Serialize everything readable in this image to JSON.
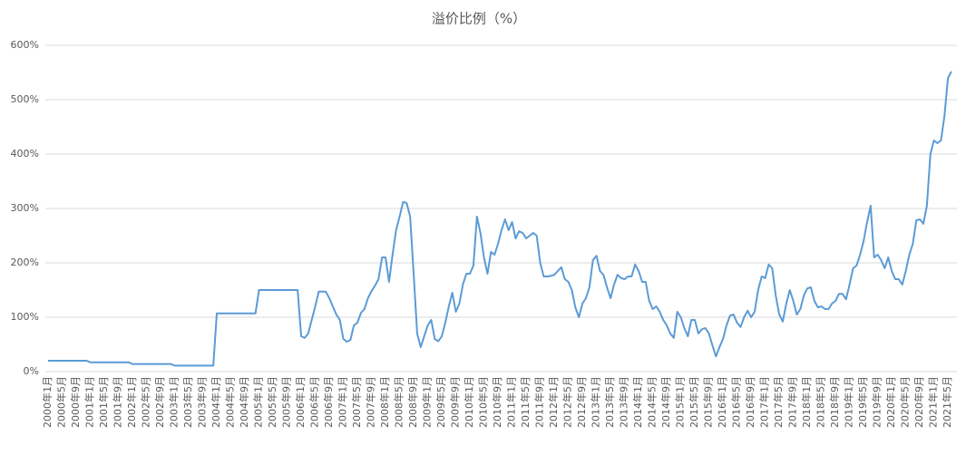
{
  "chart_data": {
    "type": "line",
    "title": "溢价比例（%）",
    "categories": [
      "2000年1月",
      null,
      null,
      null,
      "2000年5月",
      null,
      null,
      null,
      "2000年9月",
      null,
      null,
      null,
      "2001年1月",
      null,
      null,
      null,
      "2001年5月",
      null,
      null,
      null,
      "2001年9月",
      null,
      null,
      null,
      "2002年1月",
      null,
      null,
      null,
      "2002年5月",
      null,
      null,
      null,
      "2002年9月",
      null,
      null,
      null,
      "2003年1月",
      null,
      null,
      null,
      "2003年5月",
      null,
      null,
      null,
      "2003年9月",
      null,
      null,
      null,
      "2004年1月",
      null,
      null,
      null,
      "2004年5月",
      null,
      null,
      null,
      "2004年9月",
      null,
      null,
      null,
      "2005年1月",
      null,
      null,
      null,
      "2005年5月",
      null,
      null,
      null,
      "2005年9月",
      null,
      null,
      null,
      "2006年1月",
      null,
      null,
      null,
      "2006年5月",
      null,
      null,
      null,
      "2006年9月",
      null,
      null,
      null,
      "2007年1月",
      null,
      null,
      null,
      "2007年5月",
      null,
      null,
      null,
      "2007年9月",
      null,
      null,
      null,
      "2008年1月",
      null,
      null,
      null,
      "2008年5月",
      null,
      null,
      null,
      "2008年9月",
      null,
      null,
      null,
      "2009年1月",
      null,
      null,
      null,
      "2009年5月",
      null,
      null,
      null,
      "2009年9月",
      null,
      null,
      null,
      "2010年1月",
      null,
      null,
      null,
      "2010年5月",
      null,
      null,
      null,
      "2010年9月",
      null,
      null,
      null,
      "2011年1月",
      null,
      null,
      null,
      "2011年5月",
      null,
      null,
      null,
      "2011年9月",
      null,
      null,
      null,
      "2012年1月",
      null,
      null,
      null,
      "2012年5月",
      null,
      null,
      null,
      "2012年9月",
      null,
      null,
      null,
      "2013年1月",
      null,
      null,
      null,
      "2013年5月",
      null,
      null,
      null,
      "2013年9月",
      null,
      null,
      null,
      "2014年1月",
      null,
      null,
      null,
      "2014年5月",
      null,
      null,
      null,
      "2014年9月",
      null,
      null,
      null,
      "2015年1月",
      null,
      null,
      null,
      "2015年5月",
      null,
      null,
      null,
      "2015年9月",
      null,
      null,
      null,
      "2016年1月",
      null,
      null,
      null,
      "2016年5月",
      null,
      null,
      null,
      "2016年9月",
      null,
      null,
      null,
      "2017年1月",
      null,
      null,
      null,
      "2017年5月",
      null,
      null,
      null,
      "2017年9月",
      null,
      null,
      null,
      "2018年1月",
      null,
      null,
      null,
      "2018年5月",
      null,
      null,
      null,
      "2018年9月",
      null,
      null,
      null,
      "2019年1月",
      null,
      null,
      null,
      "2019年5月",
      null,
      null,
      null,
      "2019年9月",
      null,
      null,
      null,
      "2020年1月",
      null,
      null,
      null,
      "2020年5月",
      null,
      null,
      null,
      "2020年9月",
      null,
      null,
      null,
      "2021年1月",
      null,
      null,
      null,
      "2021年5月",
      null
    ],
    "values": [
      20,
      20,
      20,
      20,
      20,
      20,
      20,
      20,
      20,
      20,
      20,
      20,
      17,
      17,
      17,
      17,
      17,
      17,
      17,
      17,
      17,
      17,
      17,
      17,
      14,
      14,
      14,
      14,
      14,
      14,
      14,
      14,
      14,
      14,
      14,
      14,
      11,
      11,
      11,
      11,
      11,
      11,
      11,
      11,
      11,
      11,
      11,
      11,
      107,
      107,
      107,
      107,
      107,
      107,
      107,
      107,
      107,
      107,
      107,
      107,
      150,
      150,
      150,
      150,
      150,
      150,
      150,
      150,
      150,
      150,
      150,
      150,
      65,
      62,
      70,
      95,
      120,
      147,
      147,
      147,
      135,
      120,
      105,
      95,
      60,
      55,
      58,
      85,
      90,
      108,
      115,
      135,
      148,
      158,
      170,
      210,
      210,
      165,
      215,
      260,
      285,
      312,
      310,
      285,
      180,
      70,
      45,
      65,
      85,
      95,
      60,
      56,
      65,
      90,
      120,
      145,
      110,
      125,
      160,
      180,
      180,
      195,
      285,
      255,
      210,
      180,
      220,
      215,
      235,
      260,
      280,
      260,
      275,
      245,
      258,
      255,
      245,
      250,
      255,
      250,
      200,
      175,
      175,
      176,
      178,
      185,
      192,
      170,
      165,
      150,
      118,
      100,
      125,
      135,
      155,
      205,
      213,
      185,
      178,
      155,
      135,
      160,
      178,
      172,
      170,
      175,
      175,
      197,
      185,
      165,
      165,
      130,
      115,
      120,
      110,
      95,
      85,
      70,
      62,
      110,
      100,
      80,
      65,
      95,
      95,
      70,
      78,
      80,
      70,
      48,
      28,
      45,
      60,
      85,
      103,
      105,
      90,
      82,
      100,
      112,
      100,
      110,
      150,
      175,
      172,
      197,
      190,
      140,
      105,
      92,
      125,
      150,
      130,
      105,
      115,
      140,
      153,
      155,
      130,
      118,
      120,
      115,
      115,
      125,
      130,
      143,
      143,
      133,
      160,
      190,
      195,
      215,
      240,
      275,
      305,
      210,
      215,
      205,
      190,
      210,
      185,
      170,
      170,
      160,
      185,
      215,
      235,
      278,
      280,
      272,
      305,
      400,
      425,
      420,
      425,
      470,
      540,
      552
    ],
    "color": "#5b9bd5",
    "ylim": [
      0,
      600
    ],
    "yticks": [
      {
        "value": 0,
        "label": "0%"
      },
      {
        "value": 100,
        "label": "100%"
      },
      {
        "value": 200,
        "label": "200%"
      },
      {
        "value": 300,
        "label": "300%"
      },
      {
        "value": 400,
        "label": "400%"
      },
      {
        "value": 500,
        "label": "500%"
      },
      {
        "value": 600,
        "label": "600%"
      }
    ],
    "grid": true
  }
}
